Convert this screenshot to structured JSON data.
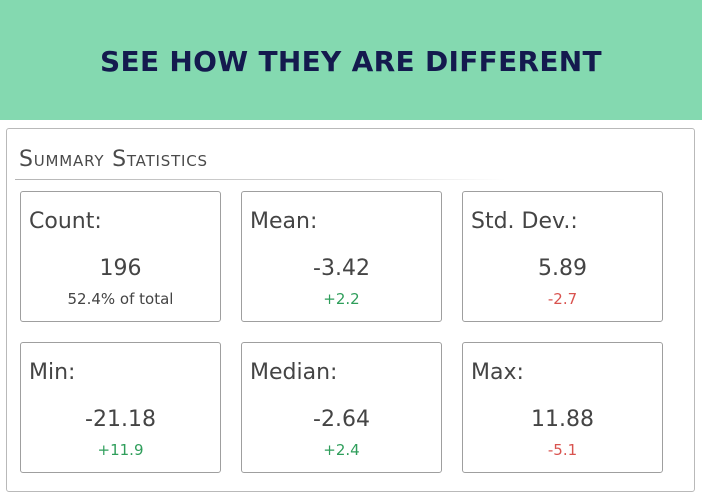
{
  "banner": {
    "title": "SEE HOW THEY ARE DIFFERENT"
  },
  "panel": {
    "title": "Summary Statistics"
  },
  "stats": [
    {
      "label": "Count:",
      "value": "196",
      "sub": "52.4% of total",
      "tone": "neutral"
    },
    {
      "label": "Mean:",
      "value": "-3.42",
      "sub": "+2.2",
      "tone": "positive"
    },
    {
      "label": "Std. Dev.:",
      "value": "5.89",
      "sub": "-2.7",
      "tone": "negative"
    },
    {
      "label": "Min:",
      "value": "-21.18",
      "sub": "+11.9",
      "tone": "positive"
    },
    {
      "label": "Median:",
      "value": "-2.64",
      "sub": "+2.4",
      "tone": "positive"
    },
    {
      "label": "Max:",
      "value": "11.88",
      "sub": "-5.1",
      "tone": "negative"
    }
  ],
  "colors": {
    "banner_bg": "#84d9b0",
    "banner_text": "#141a4e",
    "positive": "#2f9e5b",
    "negative": "#d9534f"
  }
}
